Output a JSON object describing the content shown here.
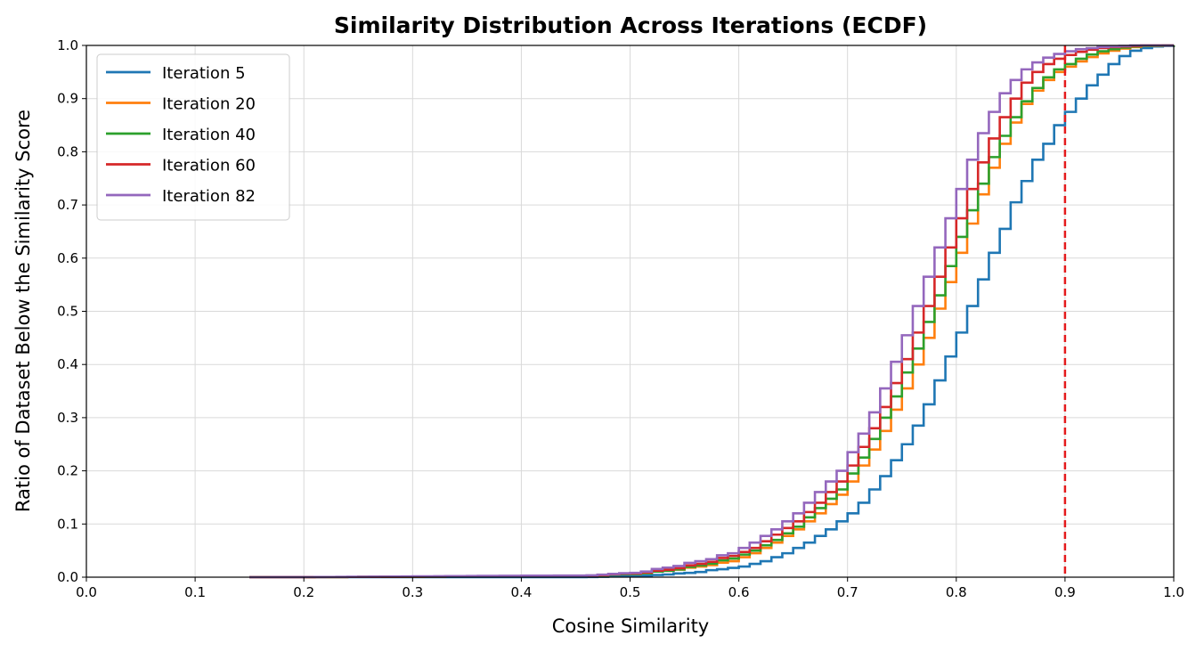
{
  "chart_data": {
    "type": "line",
    "subtype": "ecdf-step",
    "title": "Similarity Distribution Across Iterations (ECDF)",
    "xlabel": "Cosine Similarity",
    "ylabel": "Ratio of Dataset Below the Similarity Score",
    "xlim": [
      0.0,
      1.0
    ],
    "ylim": [
      0.0,
      1.0
    ],
    "xticks": [
      "0.0",
      "0.1",
      "0.2",
      "0.3",
      "0.4",
      "0.5",
      "0.6",
      "0.7",
      "0.8",
      "0.9",
      "1.0"
    ],
    "yticks": [
      "0.0",
      "0.1",
      "0.2",
      "0.3",
      "0.4",
      "0.5",
      "0.6",
      "0.7",
      "0.8",
      "0.9",
      "1.0"
    ],
    "grid": true,
    "legend_position": "top-left",
    "bin_width": 0.01,
    "threshold": {
      "x": 0.9,
      "color": "#e41a1c",
      "style": "dashed"
    },
    "series": [
      {
        "name": "Iteration 5",
        "color": "#1f77b4",
        "x": [
          0.15,
          0.45,
          0.5,
          0.52,
          0.55,
          0.58,
          0.6,
          0.62,
          0.64,
          0.66,
          0.68,
          0.7,
          0.71,
          0.72,
          0.73,
          0.74,
          0.75,
          0.76,
          0.77,
          0.78,
          0.79,
          0.8,
          0.81,
          0.82,
          0.83,
          0.84,
          0.85,
          0.86,
          0.87,
          0.88,
          0.89,
          0.9,
          0.91,
          0.92,
          0.93,
          0.94,
          0.95,
          0.96,
          0.97,
          0.98,
          1.0
        ],
        "y": [
          0.0,
          0.0,
          0.002,
          0.004,
          0.008,
          0.015,
          0.02,
          0.03,
          0.045,
          0.065,
          0.09,
          0.12,
          0.14,
          0.165,
          0.19,
          0.22,
          0.25,
          0.285,
          0.325,
          0.37,
          0.415,
          0.46,
          0.51,
          0.56,
          0.61,
          0.655,
          0.705,
          0.745,
          0.785,
          0.815,
          0.85,
          0.875,
          0.9,
          0.925,
          0.945,
          0.965,
          0.98,
          0.99,
          0.995,
          0.998,
          1.0
        ]
      },
      {
        "name": "Iteration 20",
        "color": "#ff7f0e",
        "x": [
          0.15,
          0.45,
          0.5,
          0.53,
          0.56,
          0.59,
          0.61,
          0.63,
          0.65,
          0.67,
          0.69,
          0.7,
          0.71,
          0.72,
          0.73,
          0.74,
          0.75,
          0.76,
          0.77,
          0.78,
          0.79,
          0.8,
          0.81,
          0.82,
          0.83,
          0.84,
          0.85,
          0.86,
          0.87,
          0.88,
          0.89,
          0.9,
          0.91,
          0.92,
          0.93,
          0.94,
          0.95,
          0.96,
          0.97,
          1.0
        ],
        "y": [
          0.0,
          0.002,
          0.006,
          0.012,
          0.02,
          0.03,
          0.045,
          0.065,
          0.09,
          0.12,
          0.155,
          0.18,
          0.21,
          0.24,
          0.275,
          0.315,
          0.355,
          0.4,
          0.45,
          0.505,
          0.555,
          0.61,
          0.665,
          0.72,
          0.77,
          0.815,
          0.855,
          0.89,
          0.915,
          0.935,
          0.95,
          0.96,
          0.97,
          0.978,
          0.985,
          0.99,
          0.994,
          0.997,
          0.999,
          1.0
        ]
      },
      {
        "name": "Iteration 40",
        "color": "#2ca02c",
        "x": [
          0.15,
          0.45,
          0.5,
          0.53,
          0.56,
          0.59,
          0.61,
          0.63,
          0.65,
          0.67,
          0.69,
          0.7,
          0.71,
          0.72,
          0.73,
          0.74,
          0.75,
          0.76,
          0.77,
          0.78,
          0.79,
          0.8,
          0.81,
          0.82,
          0.83,
          0.84,
          0.85,
          0.86,
          0.87,
          0.88,
          0.89,
          0.9,
          0.91,
          0.92,
          0.93,
          0.94,
          0.95,
          0.96,
          0.97,
          1.0
        ],
        "y": [
          0.0,
          0.002,
          0.006,
          0.012,
          0.022,
          0.035,
          0.05,
          0.07,
          0.095,
          0.13,
          0.165,
          0.195,
          0.225,
          0.26,
          0.3,
          0.34,
          0.385,
          0.43,
          0.48,
          0.53,
          0.585,
          0.64,
          0.69,
          0.74,
          0.79,
          0.83,
          0.865,
          0.895,
          0.92,
          0.94,
          0.955,
          0.965,
          0.975,
          0.983,
          0.989,
          0.993,
          0.996,
          0.998,
          0.999,
          1.0
        ]
      },
      {
        "name": "Iteration 60",
        "color": "#d62728",
        "x": [
          0.15,
          0.45,
          0.5,
          0.53,
          0.56,
          0.59,
          0.61,
          0.63,
          0.65,
          0.67,
          0.69,
          0.7,
          0.71,
          0.72,
          0.73,
          0.74,
          0.75,
          0.76,
          0.77,
          0.78,
          0.79,
          0.8,
          0.81,
          0.82,
          0.83,
          0.84,
          0.85,
          0.86,
          0.87,
          0.88,
          0.89,
          0.9,
          0.91,
          0.92,
          0.93,
          0.94,
          0.95,
          0.96,
          0.97,
          1.0
        ],
        "y": [
          0.0,
          0.002,
          0.007,
          0.014,
          0.025,
          0.04,
          0.055,
          0.08,
          0.105,
          0.14,
          0.18,
          0.21,
          0.245,
          0.28,
          0.32,
          0.365,
          0.41,
          0.46,
          0.51,
          0.565,
          0.62,
          0.675,
          0.73,
          0.78,
          0.825,
          0.865,
          0.9,
          0.93,
          0.95,
          0.965,
          0.975,
          0.982,
          0.988,
          0.992,
          0.995,
          0.997,
          0.998,
          0.999,
          1.0,
          1.0
        ]
      },
      {
        "name": "Iteration 82",
        "color": "#9467bd",
        "x": [
          0.15,
          0.45,
          0.5,
          0.53,
          0.56,
          0.59,
          0.61,
          0.63,
          0.65,
          0.67,
          0.69,
          0.7,
          0.71,
          0.72,
          0.73,
          0.74,
          0.75,
          0.76,
          0.77,
          0.78,
          0.79,
          0.8,
          0.81,
          0.82,
          0.83,
          0.84,
          0.85,
          0.86,
          0.87,
          0.88,
          0.89,
          0.9,
          0.91,
          0.92,
          0.93,
          0.94,
          0.95,
          0.96,
          0.97,
          1.0
        ],
        "y": [
          0.0,
          0.003,
          0.008,
          0.018,
          0.03,
          0.045,
          0.065,
          0.09,
          0.12,
          0.16,
          0.2,
          0.235,
          0.27,
          0.31,
          0.355,
          0.405,
          0.455,
          0.51,
          0.565,
          0.62,
          0.675,
          0.73,
          0.785,
          0.835,
          0.875,
          0.91,
          0.935,
          0.955,
          0.968,
          0.977,
          0.984,
          0.989,
          0.993,
          0.995,
          0.997,
          0.998,
          0.999,
          1.0,
          1.0,
          1.0
        ]
      }
    ]
  }
}
